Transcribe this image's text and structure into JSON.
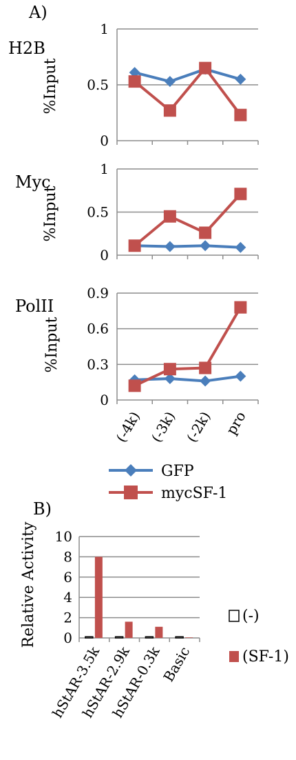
{
  "panel_a_label": "A)",
  "panel_b_label": "B)",
  "chart_data": [
    {
      "type": "line",
      "title": "H2B",
      "ylabel": "%Input",
      "categories": [
        "(-4k)",
        "(-3k)",
        "(-2k)",
        "pro"
      ],
      "ylim": [
        0,
        1
      ],
      "yticks": [
        "0",
        "0.5",
        "1"
      ],
      "yticks_values": [
        0,
        0.5,
        1
      ],
      "grid": true,
      "series": [
        {
          "name": "GFP",
          "values": [
            0.61,
            0.53,
            0.64,
            0.55
          ],
          "color": "#4a7ebb",
          "marker": "diamond"
        },
        {
          "name": "mycSF-1",
          "values": [
            0.53,
            0.27,
            0.65,
            0.23
          ],
          "color": "#c0504d",
          "marker": "square"
        }
      ]
    },
    {
      "type": "line",
      "title": "Myc",
      "ylabel": "%Input",
      "categories": [
        "(-4k)",
        "(-3k)",
        "(-2k)",
        "pro"
      ],
      "ylim": [
        0,
        1
      ],
      "yticks": [
        "0",
        "0.5",
        "1"
      ],
      "yticks_values": [
        0,
        0.5,
        1
      ],
      "grid": true,
      "series": [
        {
          "name": "GFP",
          "values": [
            0.11,
            0.1,
            0.11,
            0.09
          ],
          "color": "#4a7ebb",
          "marker": "diamond"
        },
        {
          "name": "mycSF-1",
          "values": [
            0.11,
            0.45,
            0.26,
            0.71
          ],
          "color": "#c0504d",
          "marker": "square"
        }
      ]
    },
    {
      "type": "line",
      "title": "PolII",
      "ylabel": "%Input",
      "categories": [
        "(-4k)",
        "(-3k)",
        "(-2k)",
        "pro"
      ],
      "ylim": [
        0,
        0.9
      ],
      "yticks": [
        "0",
        "0.3",
        "0.6",
        "0.9"
      ],
      "yticks_values": [
        0,
        0.3,
        0.6,
        0.9
      ],
      "grid": true,
      "legend": "bottom",
      "series": [
        {
          "name": "GFP",
          "values": [
            0.17,
            0.18,
            0.16,
            0.2
          ],
          "color": "#4a7ebb",
          "marker": "diamond"
        },
        {
          "name": "mycSF-1",
          "values": [
            0.12,
            0.26,
            0.27,
            0.78
          ],
          "color": "#c0504d",
          "marker": "square"
        }
      ]
    },
    {
      "type": "bar",
      "ylabel": "Relative Activity",
      "categories": [
        "hStAR-3.5k",
        "hStAR-2.9k",
        "hStAR-0.3k",
        "Basic"
      ],
      "ylim": [
        0,
        10
      ],
      "yticks": [
        "0",
        "2",
        "4",
        "6",
        "8",
        "10"
      ],
      "yticks_values": [
        0,
        2,
        4,
        6,
        8,
        10
      ],
      "grid": true,
      "legend": "right",
      "series": [
        {
          "name": "(-)",
          "values": [
            0.05,
            0.05,
            0.05,
            0.05
          ],
          "color": "#ffffff"
        },
        {
          "name": "(SF-1)",
          "values": [
            8.0,
            1.6,
            1.1,
            0.05
          ],
          "color": "#c0504d"
        }
      ]
    }
  ]
}
